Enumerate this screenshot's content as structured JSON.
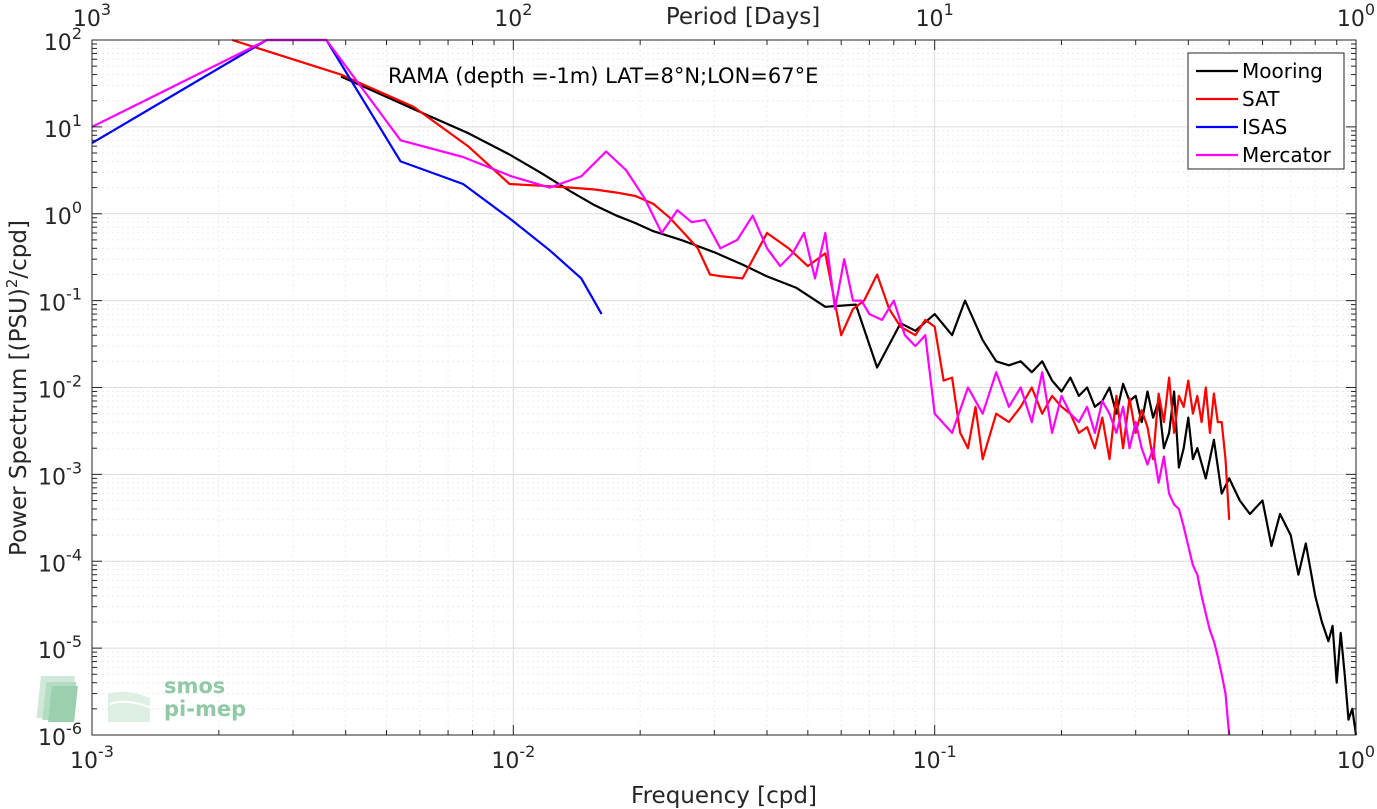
{
  "chart_data": {
    "type": "line",
    "title": "",
    "annotation": "RAMA (depth =-1m) LAT=8°N;LON=67°E",
    "xlabel": "Frequency [cpd]",
    "ylabel_main": "Power Spectrum [(PSU)",
    "ylabel_sup": "2",
    "ylabel_tail": "/cpd]",
    "x2label": "Period [Days]",
    "xscale": "log",
    "yscale": "log",
    "xlim": [
      0.001,
      1
    ],
    "ylim": [
      1e-06,
      100
    ],
    "grid": true,
    "legend_position": "top-right",
    "x_ticks": [
      {
        "value": 0.001,
        "base": "10",
        "exp": "-3"
      },
      {
        "value": 0.01,
        "base": "10",
        "exp": "-2"
      },
      {
        "value": 0.1,
        "base": "10",
        "exp": "-1"
      },
      {
        "value": 1,
        "base": "10",
        "exp": "0"
      }
    ],
    "y_ticks": [
      {
        "value": 1e-06,
        "base": "10",
        "exp": "-6"
      },
      {
        "value": 1e-05,
        "base": "10",
        "exp": "-5"
      },
      {
        "value": 0.0001,
        "base": "10",
        "exp": "-4"
      },
      {
        "value": 0.001,
        "base": "10",
        "exp": "-3"
      },
      {
        "value": 0.01,
        "base": "10",
        "exp": "-2"
      },
      {
        "value": 0.1,
        "base": "10",
        "exp": "-1"
      },
      {
        "value": 1,
        "base": "10",
        "exp": "0"
      },
      {
        "value": 10,
        "base": "10",
        "exp": "1"
      },
      {
        "value": 100,
        "base": "10",
        "exp": "2"
      }
    ],
    "x2_ticks": [
      {
        "period": 1000,
        "base": "10",
        "exp": "3"
      },
      {
        "period": 100,
        "base": "10",
        "exp": "2"
      },
      {
        "period": 10,
        "base": "10",
        "exp": "1"
      },
      {
        "period": 1,
        "base": "10",
        "exp": "0"
      }
    ],
    "series": [
      {
        "name": "Mooring",
        "color": "#000000",
        "x": [
          0.0039,
          0.0058,
          0.0078,
          0.0098,
          0.0117,
          0.0137,
          0.0156,
          0.0176,
          0.0195,
          0.0215,
          0.025,
          0.03,
          0.035,
          0.04,
          0.047,
          0.055,
          0.065,
          0.073,
          0.083,
          0.09,
          0.1,
          0.11,
          0.118,
          0.13,
          0.14,
          0.15,
          0.16,
          0.17,
          0.18,
          0.19,
          0.2,
          0.21,
          0.22,
          0.23,
          0.24,
          0.25,
          0.26,
          0.27,
          0.28,
          0.29,
          0.3,
          0.31,
          0.32,
          0.33,
          0.34,
          0.35,
          0.36,
          0.37,
          0.38,
          0.39,
          0.4,
          0.41,
          0.42,
          0.44,
          0.46,
          0.48,
          0.5,
          0.53,
          0.56,
          0.6,
          0.63,
          0.66,
          0.7,
          0.73,
          0.76,
          0.8,
          0.83,
          0.86,
          0.88,
          0.9,
          0.92,
          0.94,
          0.96,
          0.98,
          1.0
        ],
        "y": [
          38,
          16,
          8.5,
          4.8,
          2.9,
          1.8,
          1.25,
          0.95,
          0.78,
          0.63,
          0.5,
          0.36,
          0.26,
          0.19,
          0.14,
          0.085,
          0.09,
          0.017,
          0.055,
          0.045,
          0.07,
          0.04,
          0.1,
          0.035,
          0.02,
          0.018,
          0.02,
          0.015,
          0.02,
          0.012,
          0.009,
          0.013,
          0.008,
          0.01,
          0.006,
          0.007,
          0.01,
          0.005,
          0.011,
          0.007,
          0.008,
          0.004,
          0.009,
          0.0045,
          0.007,
          0.002,
          0.003,
          0.009,
          0.0012,
          0.002,
          0.0045,
          0.0015,
          0.002,
          0.0009,
          0.0025,
          0.0006,
          0.0009,
          0.0005,
          0.00035,
          0.0005,
          0.00015,
          0.00035,
          0.0002,
          7e-05,
          0.00016,
          4e-05,
          2e-05,
          1.2e-05,
          1.8e-05,
          4e-06,
          1.5e-05,
          5e-06,
          1.5e-06,
          2e-06,
          1e-06
        ]
      },
      {
        "name": "SAT",
        "color": "#ff0000",
        "x": [
          0.00215,
          0.0039,
          0.0058,
          0.0078,
          0.0098,
          0.0117,
          0.0137,
          0.0156,
          0.0176,
          0.0195,
          0.0215,
          0.0235,
          0.0254,
          0.0274,
          0.0293,
          0.0313,
          0.035,
          0.04,
          0.045,
          0.05,
          0.055,
          0.06,
          0.064,
          0.068,
          0.073,
          0.078,
          0.083,
          0.09,
          0.095,
          0.1,
          0.105,
          0.11,
          0.115,
          0.12,
          0.125,
          0.13,
          0.14,
          0.15,
          0.16,
          0.17,
          0.18,
          0.19,
          0.2,
          0.21,
          0.22,
          0.23,
          0.24,
          0.25,
          0.26,
          0.27,
          0.28,
          0.29,
          0.3,
          0.31,
          0.32,
          0.33,
          0.34,
          0.35,
          0.36,
          0.37,
          0.38,
          0.39,
          0.4,
          0.41,
          0.42,
          0.43,
          0.44,
          0.45,
          0.46,
          0.47,
          0.48,
          0.49,
          0.5
        ],
        "y": [
          100,
          40,
          17,
          6,
          2.2,
          2.1,
          2.0,
          1.9,
          1.75,
          1.6,
          1.3,
          0.9,
          0.6,
          0.4,
          0.2,
          0.19,
          0.18,
          0.6,
          0.4,
          0.25,
          0.35,
          0.04,
          0.08,
          0.1,
          0.2,
          0.08,
          0.05,
          0.04,
          0.06,
          0.05,
          0.012,
          0.013,
          0.003,
          0.002,
          0.006,
          0.0015,
          0.005,
          0.004,
          0.006,
          0.01,
          0.005,
          0.008,
          0.006,
          0.005,
          0.003,
          0.0035,
          0.002,
          0.0045,
          0.0015,
          0.008,
          0.002,
          0.0075,
          0.003,
          0.0055,
          0.0035,
          0.0015,
          0.0085,
          0.004,
          0.013,
          0.003,
          0.008,
          0.006,
          0.012,
          0.005,
          0.008,
          0.004,
          0.01,
          0.003,
          0.0085,
          0.004,
          0.004,
          0.0015,
          0.0003
        ]
      },
      {
        "name": "ISAS",
        "color": "#0000ff",
        "x": [
          0.001,
          0.0026,
          0.0036,
          0.0054,
          0.0076,
          0.0099,
          0.0122,
          0.0145,
          0.0162
        ],
        "y": [
          6.5,
          100,
          100,
          4,
          2.2,
          0.85,
          0.38,
          0.18,
          0.07
        ]
      },
      {
        "name": "Mercator",
        "color": "#ff00ff",
        "x": [
          0.001,
          0.0026,
          0.0036,
          0.0054,
          0.0076,
          0.0099,
          0.0122,
          0.0145,
          0.0166,
          0.0185,
          0.0205,
          0.0225,
          0.0245,
          0.0265,
          0.0285,
          0.031,
          0.034,
          0.037,
          0.04,
          0.043,
          0.046,
          0.049,
          0.052,
          0.055,
          0.058,
          0.061,
          0.064,
          0.067,
          0.07,
          0.075,
          0.08,
          0.085,
          0.09,
          0.095,
          0.1,
          0.11,
          0.12,
          0.13,
          0.14,
          0.15,
          0.16,
          0.17,
          0.18,
          0.19,
          0.2,
          0.21,
          0.22,
          0.23,
          0.24,
          0.25,
          0.26,
          0.27,
          0.28,
          0.29,
          0.3,
          0.31,
          0.32,
          0.33,
          0.34,
          0.35,
          0.36,
          0.37,
          0.38,
          0.39,
          0.4,
          0.41,
          0.42,
          0.43,
          0.44,
          0.45,
          0.46,
          0.47,
          0.48,
          0.49,
          0.5
        ],
        "y": [
          10,
          100,
          100,
          7,
          4.5,
          2.7,
          2.0,
          2.7,
          5.2,
          3.2,
          1.5,
          0.6,
          1.1,
          0.8,
          0.85,
          0.4,
          0.5,
          0.95,
          0.4,
          0.25,
          0.35,
          0.6,
          0.18,
          0.6,
          0.08,
          0.3,
          0.1,
          0.1,
          0.07,
          0.06,
          0.1,
          0.04,
          0.03,
          0.04,
          0.005,
          0.003,
          0.01,
          0.005,
          0.015,
          0.006,
          0.01,
          0.004,
          0.015,
          0.003,
          0.008,
          0.005,
          0.004,
          0.006,
          0.003,
          0.007,
          0.005,
          0.003,
          0.006,
          0.002,
          0.004,
          0.002,
          0.0013,
          0.002,
          0.0008,
          0.0016,
          0.0006,
          0.00045,
          0.0004,
          0.00025,
          0.00015,
          9e-05,
          7e-05,
          4e-05,
          2.5e-05,
          1.6e-05,
          1.2e-05,
          8e-06,
          5e-06,
          3e-06,
          1e-06
        ]
      }
    ]
  },
  "logo": {
    "line1": "smos",
    "line2": "pi-mep"
  }
}
